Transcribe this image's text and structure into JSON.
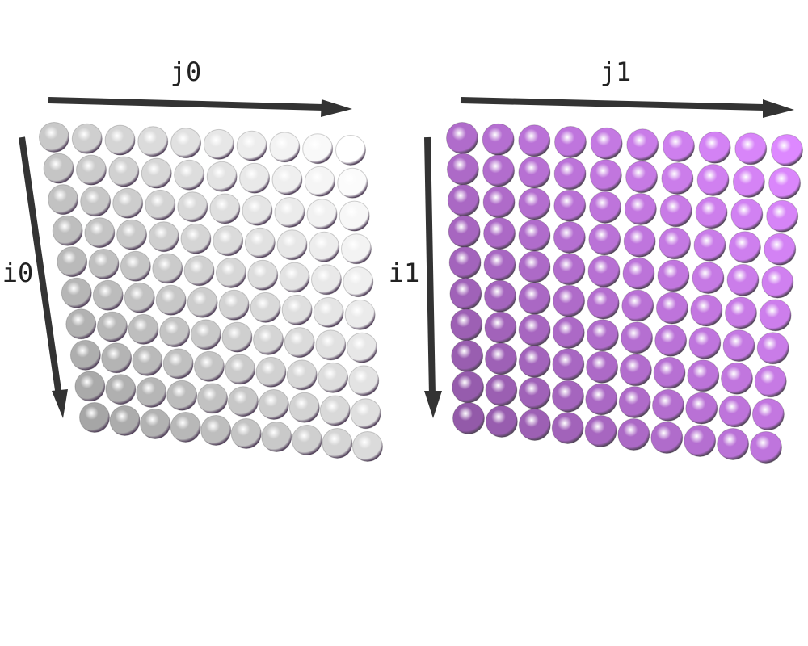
{
  "panels": [
    {
      "id": "panel-0",
      "column_axis_label": "j0",
      "row_axis_label": "i0",
      "rows": 10,
      "columns": 10,
      "palette": {
        "dark": "#888888",
        "light": "#ffffff"
      }
    },
    {
      "id": "panel-1",
      "column_axis_label": "j1",
      "row_axis_label": "i1",
      "rows": 10,
      "columns": 10,
      "palette": {
        "dark": "#7a4a8c",
        "light": "#dd88ff"
      }
    }
  ],
  "colors": {
    "arrow": "#333333",
    "label": "#222222"
  }
}
